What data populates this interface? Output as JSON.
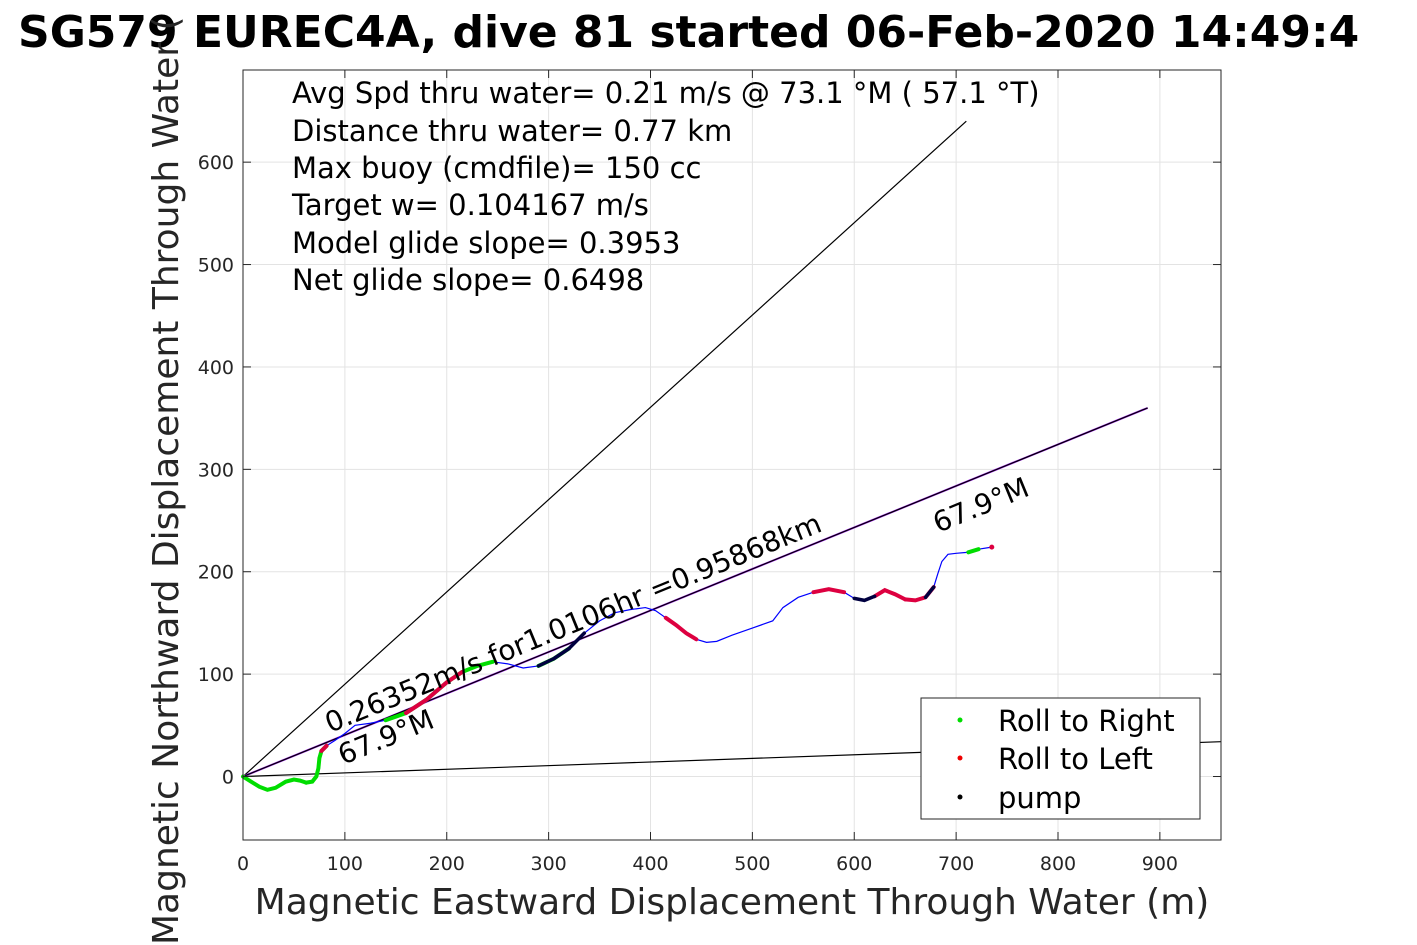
{
  "chart_data": {
    "type": "line",
    "title": "SG579 EUREC4A, dive 81 started 06-Feb-2020 14:49:4",
    "xlabel": "Magnetic Eastward Displacement Through Water (m)",
    "ylabel": "Magnetic Northward Displacement Through Water (",
    "xlim": [
      0,
      960
    ],
    "ylim": [
      -62,
      690
    ],
    "xticks": [
      0,
      100,
      200,
      300,
      400,
      500,
      600,
      700,
      800,
      900
    ],
    "yticks": [
      0,
      100,
      200,
      300,
      400,
      500,
      600
    ],
    "grid": true,
    "stats": [
      "Avg Spd thru water=  0.21 m/s @  73.1 °M ( 57.1 °T)",
      "Distance thru water=  0.77 km",
      "Max buoy (cmdfile)= 150 cc",
      "Target w= 0.104167 m/s",
      "Model glide slope= 0.3953",
      "Net glide slope= 0.6498"
    ],
    "annotations": {
      "heading_start": "67.9°M",
      "heading_end": "67.9°M",
      "current_label": "0.26352m/s for1.0106hr =0.95868km"
    },
    "reference_lines": [
      {
        "name": "upper-bound",
        "x": [
          0,
          710
        ],
        "y": [
          0,
          640
        ],
        "color": "#000000"
      },
      {
        "name": "lower-bound",
        "x": [
          0,
          960
        ],
        "y": [
          0,
          34
        ],
        "color": "#000000"
      },
      {
        "name": "heading-line",
        "x": [
          0,
          888
        ],
        "y": [
          0,
          360
        ],
        "color": "#a020f0"
      },
      {
        "name": "current-line",
        "x": [
          0,
          888
        ],
        "y": [
          0,
          360
        ],
        "color": "#000000"
      }
    ],
    "track": {
      "color": "#0000ff",
      "x": [
        0,
        8,
        16,
        24,
        32,
        42,
        50,
        56,
        62,
        68,
        72,
        74,
        75,
        77,
        82,
        90,
        100,
        110,
        125,
        140,
        160,
        180,
        200,
        215,
        230,
        245,
        260,
        275,
        290,
        305,
        320,
        335,
        350,
        365,
        380,
        395,
        405,
        415,
        425,
        435,
        445,
        455,
        465,
        480,
        500,
        520,
        530,
        545,
        560,
        575,
        590,
        600,
        610,
        620,
        630,
        640,
        650,
        660,
        670,
        678,
        682,
        686,
        692,
        700,
        712,
        722,
        735
      ],
      "y": [
        0,
        -5,
        -10,
        -13,
        -11,
        -5,
        -3,
        -4,
        -6,
        -5,
        0,
        8,
        18,
        25,
        30,
        35,
        42,
        50,
        52,
        55,
        62,
        75,
        92,
        102,
        108,
        112,
        110,
        106,
        108,
        115,
        125,
        140,
        152,
        160,
        163,
        165,
        162,
        155,
        148,
        140,
        134,
        131,
        132,
        138,
        145,
        152,
        165,
        175,
        180,
        183,
        180,
        174,
        172,
        176,
        182,
        178,
        173,
        172,
        175,
        185,
        198,
        210,
        217,
        218,
        219,
        222,
        224
      ],
      "roll_right": [
        [
          0,
          8
        ],
        [
          8,
          14
        ],
        [
          19,
          25
        ],
        [
          28,
          30
        ],
        [
          64,
          65
        ]
      ],
      "roll_left": [
        [
          13,
          14
        ],
        [
          20,
          23
        ],
        [
          37,
          40
        ],
        [
          48,
          50
        ],
        [
          53,
          56
        ],
        [
          56,
          59
        ],
        [
          66,
          66
        ]
      ],
      "pump": [
        [
          28,
          30
        ],
        [
          29,
          31
        ],
        [
          51,
          53
        ],
        [
          58,
          59
        ]
      ]
    },
    "legend": {
      "position": "bottom-right",
      "items": [
        {
          "label": "Roll to Right",
          "color": "#00dd00"
        },
        {
          "label": "Roll to Left",
          "color": "#ee0000"
        },
        {
          "label": "pump",
          "color": "#000000"
        }
      ]
    }
  }
}
